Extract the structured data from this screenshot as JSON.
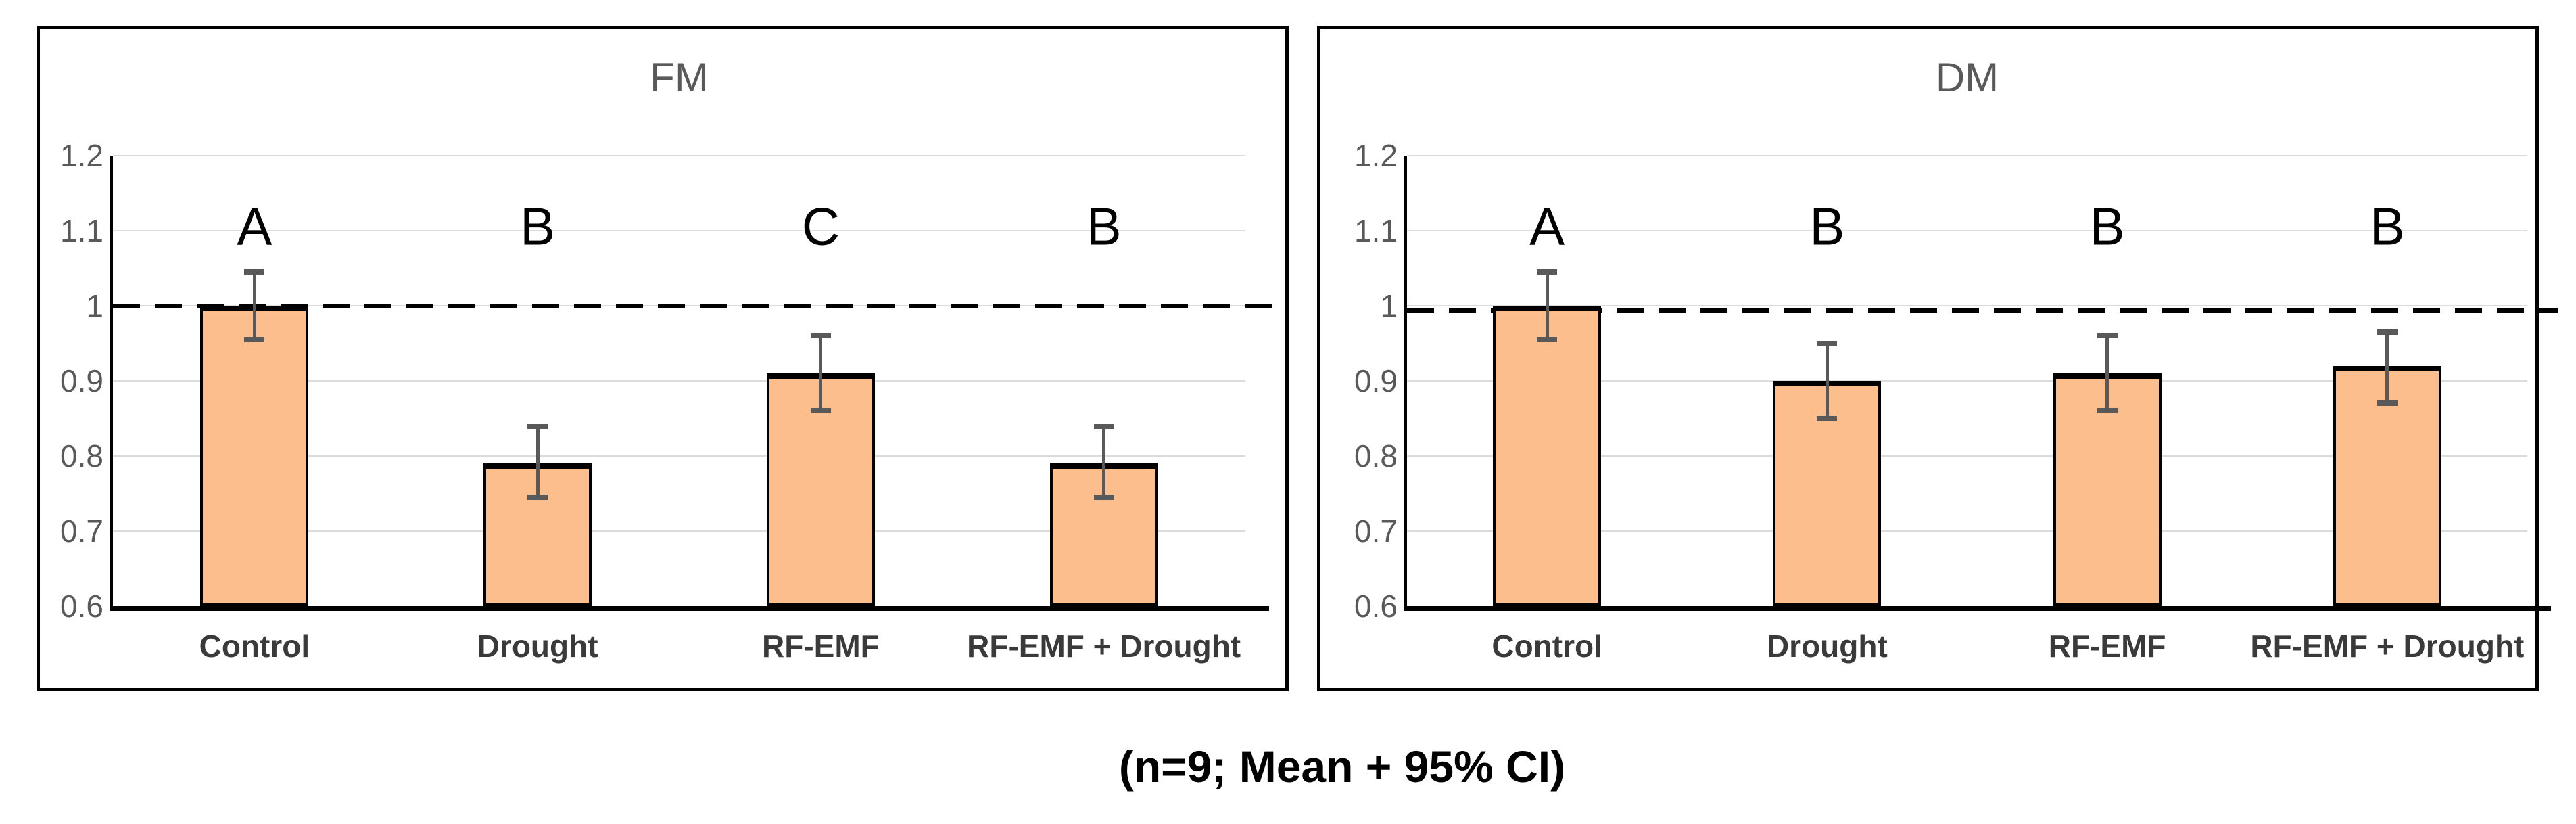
{
  "caption": "(n=9; Mean + 95% CI)",
  "colors": {
    "bar_fill": "#FCBE8D",
    "bar_border": "#000000",
    "error_bar": "#595959",
    "gridline": "#DCDCDC",
    "axis_line": "#000000",
    "reference_line": "#000000",
    "tick_label": "#595959",
    "category_label": "#3A3A3A",
    "title": "#595959",
    "sig_letter": "#000000",
    "background": "#FFFFFF"
  },
  "chart_data": [
    {
      "type": "bar",
      "title": "FM",
      "categories": [
        "Control",
        "Drought",
        "RF-EMF",
        "RF-EMF + Drought"
      ],
      "values": [
        1.0,
        0.79,
        0.91,
        0.79
      ],
      "error_low": [
        0.955,
        0.745,
        0.86,
        0.745
      ],
      "error_high": [
        1.045,
        0.84,
        0.96,
        0.84
      ],
      "sig_letters": [
        "A",
        "B",
        "C",
        "B"
      ],
      "xlabel": "",
      "ylabel": "",
      "ylim": [
        0.6,
        1.2
      ],
      "yticks": [
        0.6,
        0.7,
        0.8,
        0.9,
        1,
        1.1,
        1.2
      ],
      "reference_line_y": 1,
      "grid": true,
      "legend": "none"
    },
    {
      "type": "bar",
      "title": "DM",
      "categories": [
        "Control",
        "Drought",
        "RF-EMF",
        "RF-EMF + Drought"
      ],
      "values": [
        1.0,
        0.9,
        0.91,
        0.92
      ],
      "error_low": [
        0.955,
        0.85,
        0.86,
        0.87
      ],
      "error_high": [
        1.045,
        0.95,
        0.96,
        0.965
      ],
      "sig_letters": [
        "A",
        "B",
        "B",
        "B"
      ],
      "xlabel": "",
      "ylabel": "",
      "ylim": [
        0.6,
        1.2
      ],
      "yticks": [
        0.6,
        0.7,
        0.8,
        0.9,
        1,
        1.1,
        1.2
      ],
      "reference_line_y": 1,
      "grid": true,
      "legend": "none"
    }
  ]
}
